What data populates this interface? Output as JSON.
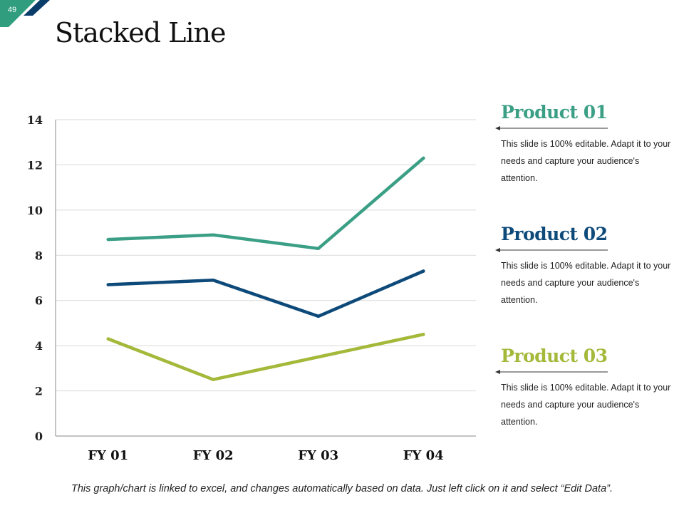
{
  "slide": {
    "number": "49",
    "title": "Stacked Line"
  },
  "colors": {
    "accent_green": "#2f9d7e",
    "accent_navy": "#0b3d6b",
    "product_01": "#3b9f86",
    "product_02": "#0d4a7a",
    "product_03": "#a4b83a"
  },
  "chart_data": {
    "type": "line",
    "title": "",
    "xlabel": "",
    "ylabel": "",
    "categories": [
      "FY 01",
      "FY 02",
      "FY 03",
      "FY 04"
    ],
    "ylim": [
      0,
      14
    ],
    "yticks": [
      0,
      2,
      4,
      6,
      8,
      10,
      12,
      14
    ],
    "grid": true,
    "series": [
      {
        "name": "Product 01",
        "color": "#3b9f86",
        "values": [
          8.7,
          8.9,
          8.3,
          12.3
        ]
      },
      {
        "name": "Product 02",
        "color": "#0d4a7a",
        "values": [
          6.7,
          6.9,
          5.3,
          7.3
        ]
      },
      {
        "name": "Product 03",
        "color": "#a4b83a",
        "values": [
          4.3,
          2.5,
          3.5,
          4.5
        ]
      }
    ]
  },
  "legend": [
    {
      "name": "Product 01",
      "color": "#3b9f86",
      "description": "This slide is 100% editable. Adapt it to your needs and capture your audience's attention."
    },
    {
      "name": "Product 02",
      "color": "#0d4a7a",
      "description": "This slide is 100% editable. Adapt it to your needs and capture your audience's attention."
    },
    {
      "name": "Product 03",
      "color": "#a4b83a",
      "description": "This slide is 100% editable. Adapt it to your needs and capture your audience's attention."
    }
  ],
  "footnote": "This graph/chart is linked to excel, and changes automatically based on data. Just left click on it and select “Edit Data”."
}
